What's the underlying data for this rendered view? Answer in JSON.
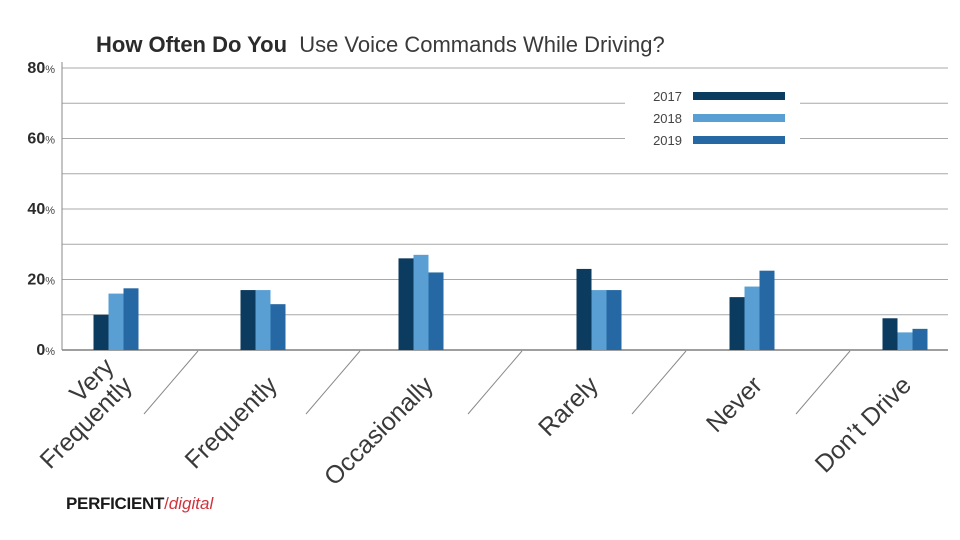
{
  "chart_data": {
    "type": "bar",
    "title_bold": "How Often Do You",
    "title_rest": "Use Voice Commands While Driving?",
    "categories": [
      "Very Frequently",
      "Frequently",
      "Occasionally",
      "Rarely",
      "Never",
      "Don't Drive"
    ],
    "category_lines": [
      [
        "Very",
        "Frequently"
      ],
      [
        "Frequently"
      ],
      [
        "Occasionally"
      ],
      [
        "Rarely"
      ],
      [
        "Never"
      ],
      [
        "Don’t Drive"
      ]
    ],
    "series": [
      {
        "name": "2017",
        "color": "#0b3b5e",
        "values": [
          10,
          17,
          26,
          23,
          15,
          9
        ]
      },
      {
        "name": "2018",
        "color": "#5a9fd4",
        "values": [
          16,
          17,
          27,
          17,
          18,
          5
        ]
      },
      {
        "name": "2019",
        "color": "#2568a3",
        "values": [
          17.5,
          13,
          22,
          17,
          22.5,
          6
        ]
      }
    ],
    "yticks": [
      {
        "num": "0",
        "pct": "%"
      },
      {
        "num": "20",
        "pct": "%"
      },
      {
        "num": "40",
        "pct": "%"
      },
      {
        "num": "60",
        "pct": "%"
      },
      {
        "num": "80",
        "pct": "%"
      }
    ],
    "ylim": [
      0,
      80
    ],
    "grid": true,
    "legend_position": "top-right"
  },
  "brand": {
    "name_part1": "PERFICIENT",
    "separator": "/",
    "name_part2": "digital"
  }
}
